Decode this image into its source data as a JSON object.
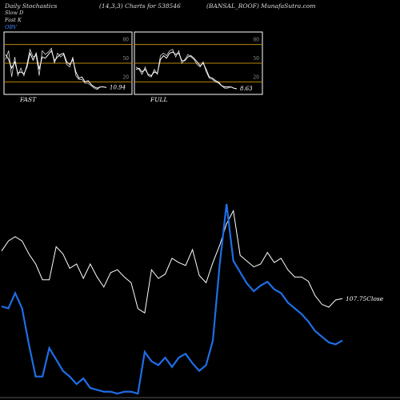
{
  "header": {
    "left": "Daily Stochastics",
    "middle": "(14,3,3) Charts for 538546",
    "right": "(BANSAL_ROOF) MunafaSutra.com"
  },
  "legend": {
    "slow_d": "Slow D",
    "fast_k": "Fast K",
    "obv": "OBV"
  },
  "colors": {
    "background": "#000000",
    "price": "#ffffff",
    "obv": "#1e6ee8",
    "band": "#b8860b",
    "panel_border": "#ffffff"
  },
  "chart_data": [
    {
      "type": "line",
      "panel": "FAST",
      "ylim": [
        0,
        100
      ],
      "ticks": [
        20,
        50,
        80
      ],
      "label": "FAST",
      "last_value_label": "10.94",
      "series": [
        {
          "values": [
            64,
            56,
            42,
            52,
            34,
            36,
            33,
            44,
            66,
            55,
            66,
            40,
            60,
            58,
            64,
            70,
            54,
            60,
            64,
            66,
            52,
            48,
            56,
            36,
            26,
            28,
            20,
            22,
            16,
            12,
            10,
            12,
            12,
            11
          ]
        },
        {
          "values": [
            56,
            70,
            28,
            60,
            30,
            42,
            30,
            48,
            72,
            60,
            62,
            30,
            70,
            64,
            68,
            74,
            50,
            66,
            60,
            64,
            48,
            44,
            60,
            30,
            24,
            24,
            18,
            18,
            14,
            10,
            8,
            12,
            12,
            11
          ]
        }
      ]
    },
    {
      "type": "line",
      "panel": "FULL",
      "ylim": [
        0,
        100
      ],
      "ticks": [
        20,
        50,
        80
      ],
      "label": "FULL",
      "last_value_label": "8.63",
      "series": [
        {
          "values": [
            40,
            42,
            36,
            40,
            32,
            30,
            36,
            34,
            56,
            62,
            58,
            66,
            68,
            64,
            66,
            54,
            54,
            60,
            62,
            58,
            52,
            46,
            50,
            40,
            28,
            26,
            22,
            20,
            14,
            12,
            12,
            12,
            10,
            9
          ]
        },
        {
          "values": [
            44,
            40,
            32,
            44,
            30,
            28,
            40,
            32,
            62,
            66,
            62,
            70,
            72,
            60,
            70,
            50,
            56,
            64,
            60,
            56,
            48,
            44,
            52,
            36,
            26,
            24,
            20,
            18,
            14,
            10,
            10,
            12,
            10,
            9
          ]
        }
      ]
    },
    {
      "type": "line",
      "panel": "price-obv",
      "last_value_label": "107.75Close",
      "series": [
        {
          "name": "Close",
          "values": [
            59,
            66,
            69,
            66,
            57,
            50,
            39,
            39,
            62,
            57,
            47,
            50,
            40,
            50,
            41,
            34,
            44,
            46,
            41,
            37,
            19,
            16,
            46,
            40,
            43,
            54,
            51,
            49,
            60,
            42,
            37,
            51,
            63,
            78,
            87,
            56,
            52,
            48,
            50,
            58,
            51,
            54,
            46,
            41,
            41,
            38,
            28,
            22,
            20,
            25,
            26
          ]
        },
        {
          "name": "OBV",
          "values": [
            46,
            45,
            53,
            45,
            26,
            9,
            9,
            24,
            18,
            12,
            9,
            5,
            8,
            3,
            2,
            1,
            1,
            0,
            1,
            1,
            0,
            22,
            17,
            15,
            19,
            14,
            19,
            21,
            16,
            12,
            15,
            28,
            68,
            100,
            70,
            64,
            58,
            54,
            57,
            59,
            55,
            53,
            48,
            45,
            42,
            38,
            33,
            30,
            27,
            26,
            28
          ]
        }
      ]
    }
  ]
}
